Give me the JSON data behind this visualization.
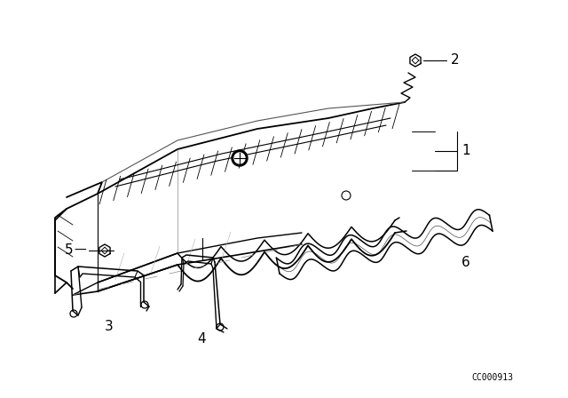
{
  "bg_color": "#ffffff",
  "line_color": "#000000",
  "fig_width": 6.4,
  "fig_height": 4.48,
  "dpi": 100,
  "watermark": "CC000913"
}
